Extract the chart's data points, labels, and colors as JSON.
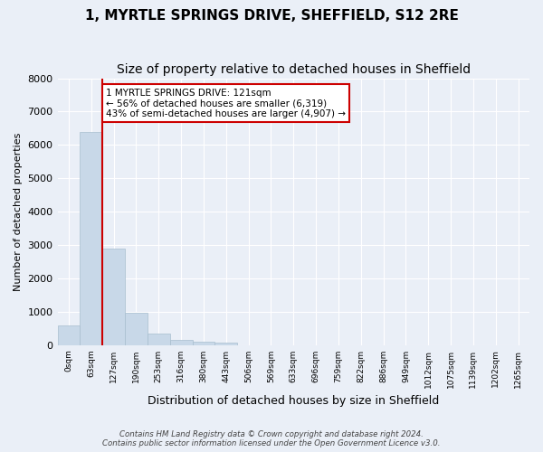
{
  "title": "1, MYRTLE SPRINGS DRIVE, SHEFFIELD, S12 2RE",
  "subtitle": "Size of property relative to detached houses in Sheffield",
  "xlabel": "Distribution of detached houses by size in Sheffield",
  "ylabel": "Number of detached properties",
  "footnote1": "Contains HM Land Registry data © Crown copyright and database right 2024.",
  "footnote2": "Contains public sector information licensed under the Open Government Licence v3.0.",
  "bin_labels": [
    "0sqm",
    "63sqm",
    "127sqm",
    "190sqm",
    "253sqm",
    "316sqm",
    "380sqm",
    "443sqm",
    "506sqm",
    "569sqm",
    "633sqm",
    "696sqm",
    "759sqm",
    "822sqm",
    "886sqm",
    "949sqm",
    "1012sqm",
    "1075sqm",
    "1139sqm",
    "1202sqm",
    "1265sqm"
  ],
  "bar_values": [
    580,
    6400,
    2900,
    980,
    340,
    145,
    100,
    70,
    0,
    0,
    0,
    0,
    0,
    0,
    0,
    0,
    0,
    0,
    0,
    0,
    0
  ],
  "bar_color": "#c8d8e8",
  "bar_edge_color": "#a8bece",
  "vline_x": 1.5,
  "vline_color": "#cc0000",
  "annotation_text": "1 MYRTLE SPRINGS DRIVE: 121sqm\n← 56% of detached houses are smaller (6,319)\n43% of semi-detached houses are larger (4,907) →",
  "annotation_box_color": "#cc0000",
  "annotation_text_color": "#000000",
  "ylim": [
    0,
    8000
  ],
  "yticks": [
    0,
    1000,
    2000,
    3000,
    4000,
    5000,
    6000,
    7000,
    8000
  ],
  "bg_color": "#eaeff7",
  "plot_bg_color": "#eaeff7",
  "grid_color": "#ffffff",
  "title_fontsize": 11,
  "subtitle_fontsize": 10
}
